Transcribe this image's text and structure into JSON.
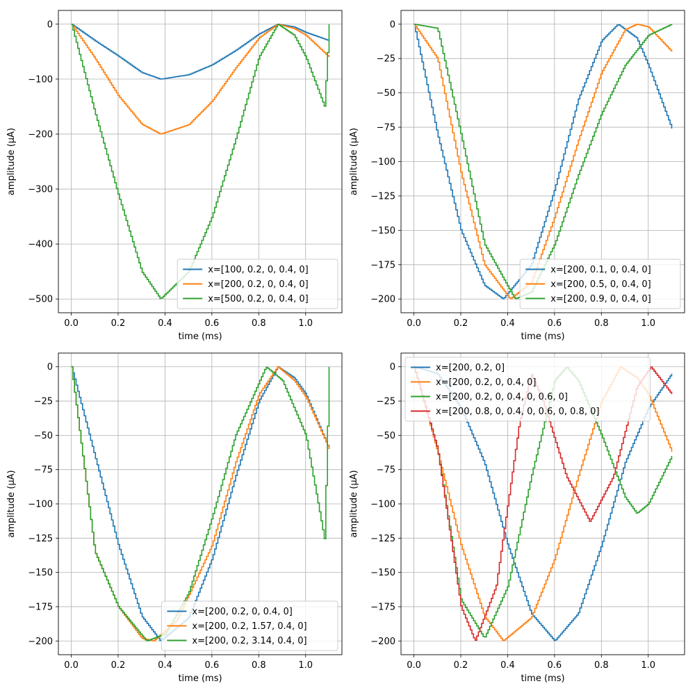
{
  "chart_data": [
    {
      "type": "line",
      "subplot": "top-left",
      "xlabel": "time (ms)",
      "ylabel": "amplitude (µA)",
      "xlim": [
        -0.055,
        1.155
      ],
      "ylim": [
        -525,
        25
      ],
      "xticks": [
        0.0,
        0.2,
        0.4,
        0.6,
        0.8,
        1.0
      ],
      "xtick_labels": [
        "0.0",
        "0.2",
        "0.4",
        "0.6",
        "0.8",
        "1.0"
      ],
      "yticks": [
        0,
        -100,
        -200,
        -300,
        -400,
        -500
      ],
      "ytick_labels": [
        "0",
        "−100",
        "−200",
        "−300",
        "−400",
        "−500"
      ],
      "grid": true,
      "legend_position": "lower-right",
      "series": [
        {
          "name": "x=[100, 0.2, 0, 0.4, 0]",
          "color": "#1f77b4",
          "x": [
            0.0,
            0.1,
            0.2,
            0.3,
            0.38,
            0.5,
            0.6,
            0.7,
            0.8,
            0.88,
            0.95,
            1.0,
            1.1
          ],
          "y": [
            0,
            -30,
            -58,
            -88,
            -100,
            -92,
            -74,
            -48,
            -18,
            0,
            -5,
            -15,
            -30
          ]
        },
        {
          "name": "x=[200, 0.2, 0, 0.4, 0]",
          "color": "#ff7f0e",
          "x": [
            0.0,
            0.1,
            0.2,
            0.3,
            0.38,
            0.5,
            0.6,
            0.7,
            0.8,
            0.88,
            0.95,
            1.0,
            1.1
          ],
          "y": [
            0,
            -62,
            -130,
            -182,
            -200,
            -183,
            -140,
            -80,
            -25,
            0,
            -8,
            -20,
            -60
          ]
        },
        {
          "name": "x=[500, 0.2, 0, 0.4, 0]",
          "color": "#2ca02c",
          "x": [
            0.0,
            0.1,
            0.2,
            0.3,
            0.38,
            0.5,
            0.6,
            0.7,
            0.8,
            0.88,
            0.95,
            1.0,
            1.08,
            1.1
          ],
          "y": [
            0,
            -160,
            -310,
            -450,
            -500,
            -450,
            -350,
            -210,
            -60,
            0,
            -20,
            -60,
            -150,
            0
          ]
        }
      ]
    },
    {
      "type": "line",
      "subplot": "top-right",
      "xlabel": "time (ms)",
      "ylabel": "amplitude (µA)",
      "xlim": [
        -0.055,
        1.155
      ],
      "ylim": [
        -210,
        10
      ],
      "xticks": [
        0.0,
        0.2,
        0.4,
        0.6,
        0.8,
        1.0
      ],
      "xtick_labels": [
        "0.0",
        "0.2",
        "0.4",
        "0.6",
        "0.8",
        "1.0"
      ],
      "yticks": [
        0,
        -25,
        -50,
        -75,
        -100,
        -125,
        -150,
        -175,
        -200
      ],
      "ytick_labels": [
        "0",
        "−25",
        "−50",
        "−75",
        "−100",
        "−125",
        "−150",
        "−175",
        "−200"
      ],
      "grid": true,
      "legend_position": "lower-right",
      "series": [
        {
          "name": "x=[200, 0.1, 0, 0.4, 0]",
          "color": "#1f77b4",
          "x": [
            0.0,
            0.1,
            0.2,
            0.3,
            0.38,
            0.5,
            0.6,
            0.7,
            0.8,
            0.87,
            0.95,
            1.0,
            1.1
          ],
          "y": [
            0,
            -80,
            -150,
            -190,
            -200,
            -175,
            -120,
            -55,
            -12,
            0,
            -10,
            -30,
            -76
          ]
        },
        {
          "name": "x=[200, 0.5, 0, 0.4, 0]",
          "color": "#ff7f0e",
          "x": [
            0.0,
            0.1,
            0.2,
            0.3,
            0.41,
            0.5,
            0.6,
            0.7,
            0.8,
            0.9,
            0.95,
            1.0,
            1.1
          ],
          "y": [
            0,
            -25,
            -108,
            -175,
            -200,
            -188,
            -140,
            -85,
            -35,
            -4,
            0,
            -2,
            -20
          ]
        },
        {
          "name": "x=[200, 0.9, 0, 0.4, 0]",
          "color": "#2ca02c",
          "x": [
            0.0,
            0.1,
            0.2,
            0.3,
            0.43,
            0.5,
            0.6,
            0.7,
            0.8,
            0.9,
            1.0,
            1.1
          ],
          "y": [
            0,
            -3,
            -80,
            -160,
            -200,
            -195,
            -160,
            -110,
            -65,
            -30,
            -8,
            0
          ]
        }
      ]
    },
    {
      "type": "line",
      "subplot": "bottom-left",
      "xlabel": "time (ms)",
      "ylabel": "amplitude (µA)",
      "xlim": [
        -0.055,
        1.155
      ],
      "ylim": [
        -210,
        10
      ],
      "xticks": [
        0.0,
        0.2,
        0.4,
        0.6,
        0.8,
        1.0
      ],
      "xtick_labels": [
        "0.0",
        "0.2",
        "0.4",
        "0.6",
        "0.8",
        "1.0"
      ],
      "yticks": [
        0,
        -25,
        -50,
        -75,
        -100,
        -125,
        -150,
        -175,
        -200
      ],
      "ytick_labels": [
        "0",
        "−25",
        "−50",
        "−75",
        "−100",
        "−125",
        "−150",
        "−175",
        "−200"
      ],
      "grid": true,
      "legend_position": "lower-right",
      "series": [
        {
          "name": "x=[200, 0.2, 0, 0.4, 0]",
          "color": "#1f77b4",
          "x": [
            0.0,
            0.1,
            0.2,
            0.3,
            0.38,
            0.5,
            0.6,
            0.7,
            0.8,
            0.88,
            0.95,
            1.0,
            1.1
          ],
          "y": [
            0,
            -65,
            -130,
            -182,
            -200,
            -183,
            -140,
            -80,
            -25,
            0,
            -8,
            -20,
            -60
          ]
        },
        {
          "name": "x=[200, 0.2, 1.57, 0.4, 0]",
          "color": "#ff7f0e",
          "x": [
            0.0,
            0.1,
            0.2,
            0.3,
            0.35,
            0.45,
            0.6,
            0.7,
            0.8,
            0.88,
            0.95,
            1.0,
            1.1
          ],
          "y": [
            0,
            -135,
            -175,
            -198,
            -200,
            -185,
            -130,
            -70,
            -20,
            0,
            -10,
            -22,
            -60
          ]
        },
        {
          "name": "x=[200, 0.2, 3.14, 0.4, 0]",
          "color": "#2ca02c",
          "x": [
            0.0,
            0.1,
            0.2,
            0.32,
            0.4,
            0.5,
            0.6,
            0.7,
            0.83,
            0.9,
            1.0,
            1.08,
            1.1
          ],
          "y": [
            0,
            -135,
            -175,
            -200,
            -195,
            -165,
            -110,
            -50,
            0,
            -10,
            -50,
            -126,
            0
          ]
        }
      ]
    },
    {
      "type": "line",
      "subplot": "bottom-right",
      "xlabel": "time (ms)",
      "ylabel": "amplitude (µA)",
      "xlim": [
        -0.055,
        1.155
      ],
      "ylim": [
        -210,
        10
      ],
      "xticks": [
        0.0,
        0.2,
        0.4,
        0.6,
        0.8,
        1.0
      ],
      "xtick_labels": [
        "0.0",
        "0.2",
        "0.4",
        "0.6",
        "0.8",
        "1.0"
      ],
      "yticks": [
        0,
        -25,
        -50,
        -75,
        -100,
        -125,
        -150,
        -175,
        -200
      ],
      "ytick_labels": [
        "0",
        "−25",
        "−50",
        "−75",
        "−100",
        "−125",
        "−150",
        "−175",
        "−200"
      ],
      "grid": true,
      "legend_position": "upper-left",
      "series": [
        {
          "name": "x=[200, 0.2, 0]",
          "color": "#1f77b4",
          "x": [
            0.0,
            0.1,
            0.2,
            0.3,
            0.4,
            0.5,
            0.6,
            0.7,
            0.8,
            0.9,
            1.0,
            1.1
          ],
          "y": [
            0,
            -5,
            -30,
            -70,
            -130,
            -180,
            -200,
            -180,
            -130,
            -70,
            -30,
            -5
          ]
        },
        {
          "name": "x=[200, 0.2, 0, 0.4, 0]",
          "color": "#ff7f0e",
          "x": [
            0.0,
            0.1,
            0.2,
            0.3,
            0.38,
            0.5,
            0.6,
            0.7,
            0.8,
            0.88,
            0.95,
            1.0,
            1.1
          ],
          "y": [
            0,
            -62,
            -130,
            -182,
            -200,
            -183,
            -140,
            -80,
            -25,
            0,
            -8,
            -20,
            -62
          ]
        },
        {
          "name": "x=[200, 0.2, 0, 0.4, 0, 0.6, 0]",
          "color": "#2ca02c",
          "x": [
            0.0,
            0.1,
            0.2,
            0.3,
            0.4,
            0.5,
            0.6,
            0.65,
            0.7,
            0.8,
            0.9,
            0.95,
            1.0,
            1.1
          ],
          "y": [
            0,
            -60,
            -170,
            -198,
            -160,
            -80,
            -10,
            0,
            -10,
            -50,
            -95,
            -107,
            -100,
            -65
          ]
        },
        {
          "name": "x=[200, 0.8, 0, 0.4, 0, 0.6, 0, 0.8, 0]",
          "color": "#d62728",
          "x": [
            0.0,
            0.1,
            0.2,
            0.26,
            0.35,
            0.45,
            0.5,
            0.55,
            0.65,
            0.75,
            0.85,
            0.95,
            1.01,
            1.1
          ],
          "y": [
            0,
            -60,
            -175,
            -200,
            -160,
            -40,
            -5,
            -25,
            -80,
            -113,
            -80,
            -15,
            0,
            -20
          ]
        }
      ]
    }
  ]
}
